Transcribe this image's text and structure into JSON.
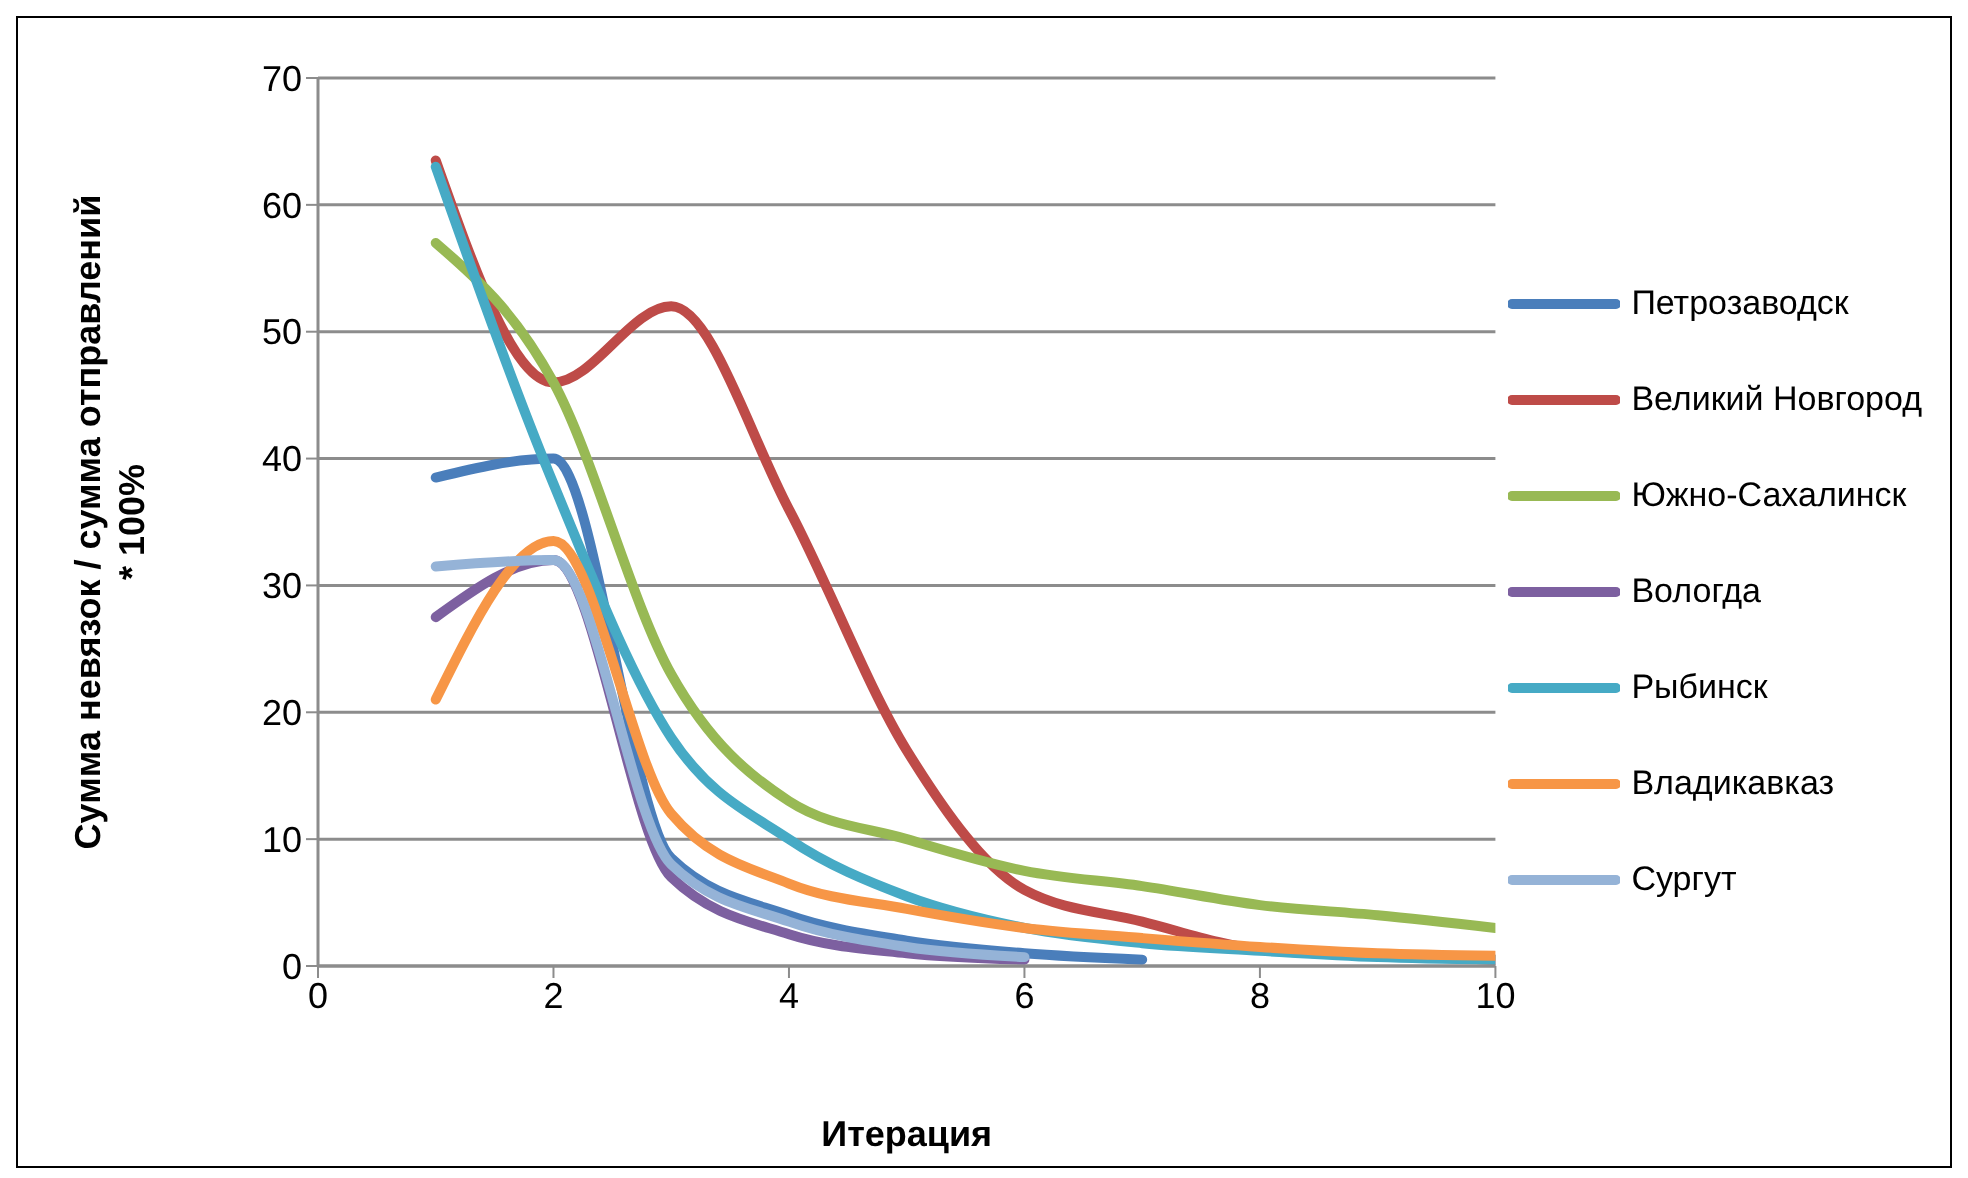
{
  "chart_data": {
    "type": "line",
    "xlabel": "Итерация",
    "ylabel": "Сумма невязок / сумма отправлений * 100%",
    "xlim": [
      0,
      10
    ],
    "xticks": [
      0,
      2,
      4,
      6,
      8,
      10
    ],
    "ylim": [
      0,
      70
    ],
    "yticks": [
      0,
      10,
      20,
      30,
      40,
      50,
      60,
      70
    ],
    "grid": "y",
    "legend": "right",
    "marker": "none",
    "line_style": "solid",
    "x": [
      1,
      2,
      3,
      4,
      5,
      6,
      7,
      8,
      9,
      10
    ],
    "series": [
      {
        "name": "Петрозаводск",
        "color": "#4a7ebb",
        "values": [
          38.5,
          40,
          8.5,
          4,
          2,
          1,
          0.5,
          null,
          null,
          null
        ]
      },
      {
        "name": "Великий Новгород",
        "color": "#be4b48",
        "values": [
          63.5,
          46,
          52,
          36,
          17,
          6,
          3.5,
          1.3,
          0.8,
          0.5
        ]
      },
      {
        "name": "Южно-Сахалинск",
        "color": "#98b954",
        "values": [
          57,
          46,
          23,
          13,
          10,
          7.5,
          6.3,
          4.8,
          4,
          3
        ]
      },
      {
        "name": "Вологда",
        "color": "#7d60a0",
        "values": [
          27.5,
          32,
          7,
          2.5,
          1,
          0.5,
          null,
          null,
          null,
          null
        ]
      },
      {
        "name": "Рыбинск",
        "color": "#46aac5",
        "values": [
          63,
          38,
          18,
          10,
          5.5,
          3,
          1.8,
          1.2,
          0.7,
          0.5
        ]
      },
      {
        "name": "Владикавказ",
        "color": "#f79646",
        "values": [
          21,
          33.5,
          12,
          6.5,
          4.5,
          3,
          2.2,
          1.5,
          1,
          0.8
        ]
      },
      {
        "name": "Сургут",
        "color": "#95b3d7",
        "values": [
          31.5,
          32,
          8,
          3.5,
          1.5,
          0.7,
          null,
          null,
          null,
          null
        ]
      }
    ]
  }
}
